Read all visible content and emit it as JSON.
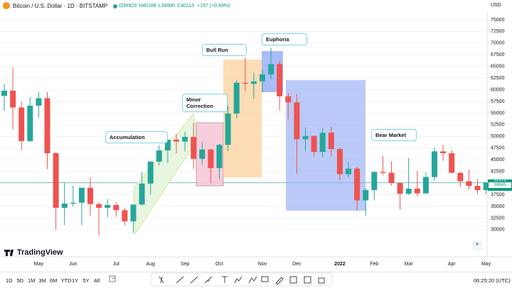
{
  "ui": {
    "symbol": "Bitcoin / U.S. Dollar · 1D · BITSTAMP",
    "ohlc": [
      "O39929",
      "H40188",
      "L39800",
      "C40113"
    ],
    "change": "+197 (+0.49%)",
    "currency": "USD",
    "time_tag": "17:34:40",
    "logo": "TradingView",
    "ranges": [
      "1D",
      "5D",
      "1M",
      "3M",
      "6M",
      "YTD",
      "1Y",
      "5Y",
      "All"
    ],
    "clock": "06:25:20 (UTC)"
  },
  "chart_data": {
    "type": "candlestick",
    "categories": [
      null,
      null,
      null,
      null,
      "May",
      null,
      null,
      null,
      "Jun",
      null,
      null,
      null,
      null,
      "Jul",
      null,
      null,
      null,
      "Aug",
      null,
      null,
      null,
      "Sep",
      null,
      null,
      null,
      "Oct",
      null,
      null,
      null,
      null,
      "Nov",
      null,
      null,
      null,
      "Dec",
      null,
      null,
      null,
      null,
      "2022",
      null,
      null,
      null,
      "Feb",
      null,
      null,
      null,
      "Mar",
      null,
      null,
      null,
      null,
      "Apr",
      null,
      null,
      null,
      "May"
    ],
    "open": [
      58700,
      59800,
      56200,
      49000,
      56600,
      58200,
      46400,
      34700,
      35600,
      35800,
      39000,
      35500,
      34700,
      35300,
      34200,
      31800,
      35400,
      39900,
      44600,
      47000,
      49300,
      48900,
      49900,
      45200,
      47200,
      43200,
      48200,
      54900,
      61500,
      61300,
      61800,
      63300,
      65500,
      58600,
      57300,
      49400,
      50100,
      46700,
      50800,
      47300,
      41900,
      43100,
      36300,
      38500,
      42400,
      42200,
      40000,
      37700,
      38800,
      37800,
      41300,
      46800,
      46400,
      42200,
      40400,
      39400,
      38500
    ],
    "high": [
      61200,
      64800,
      57500,
      58500,
      59500,
      59500,
      46600,
      40000,
      39500,
      39000,
      41300,
      35900,
      36600,
      35900,
      34600,
      35400,
      42400,
      44700,
      48100,
      49400,
      50500,
      51000,
      52900,
      48800,
      47300,
      48400,
      56600,
      62000,
      67000,
      63700,
      64300,
      69000,
      66300,
      59300,
      59100,
      51900,
      50100,
      51800,
      52100,
      47500,
      44500,
      43500,
      38900,
      41900,
      45800,
      44700,
      40000,
      45400,
      42600,
      42300,
      47700,
      48200,
      47100,
      42400,
      42900,
      40800,
      40200
    ],
    "low": [
      55500,
      51500,
      47000,
      48800,
      54000,
      43000,
      30000,
      31000,
      35000,
      31000,
      33000,
      28800,
      32700,
      32800,
      31000,
      29300,
      35200,
      37500,
      43800,
      44300,
      46400,
      46800,
      43000,
      44000,
      40000,
      40800,
      46900,
      53900,
      59700,
      58000,
      59400,
      62300,
      55600,
      53600,
      42000,
      46800,
      45600,
      45600,
      45700,
      40600,
      41200,
      34000,
      33000,
      36300,
      41700,
      39500,
      34300,
      37400,
      37200,
      37600,
      40500,
      44800,
      42100,
      39200,
      38600,
      37700,
      37700
    ],
    "close": [
      59800,
      56200,
      49000,
      56600,
      58200,
      46400,
      34700,
      35600,
      35800,
      39000,
      35500,
      34700,
      35300,
      34200,
      31800,
      35400,
      39900,
      44600,
      47000,
      49300,
      48900,
      49900,
      45200,
      47200,
      43200,
      48200,
      54900,
      61500,
      61300,
      61800,
      63300,
      65500,
      58600,
      57300,
      49400,
      50100,
      46700,
      50800,
      47300,
      41900,
      43100,
      36300,
      38500,
      42400,
      42200,
      40000,
      37700,
      38800,
      37800,
      41300,
      46800,
      46400,
      42200,
      40400,
      39400,
      38500,
      40100
    ],
    "up_color": "#26a69a",
    "down_color": "#ef5350",
    "ylim": [
      24200,
      79250
    ],
    "yticks": [
      30000,
      32500,
      35000,
      37500,
      40000,
      42500,
      45000,
      47500,
      50000,
      52500,
      55000,
      57500,
      60000,
      62500,
      65000,
      67500,
      70000,
      72500,
      75000
    ],
    "grid": true,
    "last_price": 40113,
    "second_price": 39685,
    "annotations": [
      "Accumulation",
      "Minor Correction",
      "Bull Run",
      "Euphoria",
      "Bear Market"
    ]
  }
}
